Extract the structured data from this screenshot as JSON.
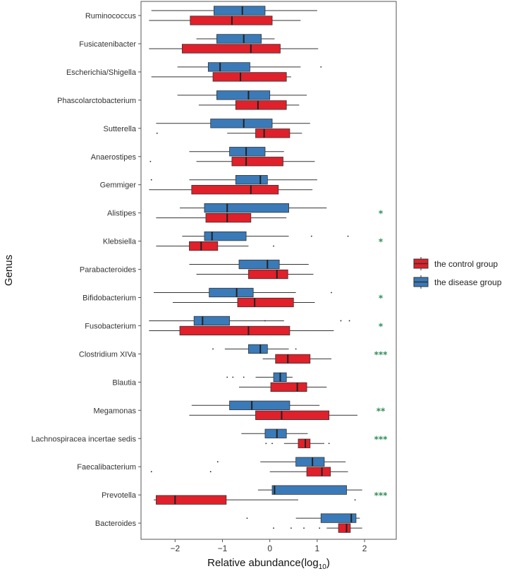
{
  "chart_data": {
    "type": "boxplot",
    "orientation": "horizontal",
    "xlabel": "Relative abundance(log10)",
    "xlabel_main": "Relative abundance(log",
    "xlabel_sub": "10",
    "xlabel_close": ")",
    "ylabel": "Genus",
    "xlim": [
      -2.6,
      2.55
    ],
    "xticks": [
      -2,
      -1,
      0,
      1,
      2
    ],
    "xtick_labels": [
      "−2",
      "−1",
      "0",
      "1",
      "2"
    ],
    "legend_position": "right",
    "series": [
      {
        "name": "the control group",
        "color": "#e0202a"
      },
      {
        "name": "the disease group",
        "color": "#3a7ab8"
      }
    ],
    "significance_color": "#2e8b57",
    "genera": [
      {
        "name": "Ruminococcus",
        "disease": {
          "min": -2.5,
          "q1": -1.18,
          "median": -0.58,
          "q3": -0.1,
          "max": 1.0,
          "outliers": []
        },
        "control": {
          "min": -2.55,
          "q1": -1.68,
          "median": -0.8,
          "q3": 0.05,
          "max": 0.65,
          "outliers": []
        },
        "significance": ""
      },
      {
        "name": "Fusicatenibacter",
        "disease": {
          "min": -1.55,
          "q1": -1.12,
          "median": -0.55,
          "q3": -0.18,
          "max": 0.1,
          "outliers": []
        },
        "control": {
          "min": -2.55,
          "q1": -1.85,
          "median": -0.4,
          "q3": 0.22,
          "max": 1.02,
          "outliers": []
        },
        "significance": ""
      },
      {
        "name": "Escherichia/Shigella",
        "disease": {
          "min": -1.95,
          "q1": -1.3,
          "median": -1.05,
          "q3": -0.42,
          "max": 0.65,
          "outliers": [
            1.08
          ]
        },
        "control": {
          "min": -2.5,
          "q1": -1.2,
          "median": -0.62,
          "q3": 0.35,
          "max": 0.45,
          "outliers": []
        },
        "significance": ""
      },
      {
        "name": "Phascolarctobacterium",
        "disease": {
          "min": -1.95,
          "q1": -1.12,
          "median": -0.45,
          "q3": 0.0,
          "max": 0.78,
          "outliers": []
        },
        "control": {
          "min": -1.5,
          "q1": -0.72,
          "median": -0.25,
          "q3": 0.35,
          "max": 0.62,
          "outliers": []
        },
        "significance": ""
      },
      {
        "name": "Sutterella",
        "disease": {
          "min": -2.4,
          "q1": -1.25,
          "median": -0.55,
          "q3": 0.05,
          "max": 0.85,
          "outliers": []
        },
        "control": {
          "min": -0.9,
          "q1": -0.3,
          "median": -0.12,
          "q3": 0.42,
          "max": 0.68,
          "outliers": [
            -2.38
          ]
        },
        "significance": ""
      },
      {
        "name": "Anaerostipes",
        "disease": {
          "min": -1.7,
          "q1": -0.85,
          "median": -0.5,
          "q3": -0.1,
          "max": 0.3,
          "outliers": []
        },
        "control": {
          "min": -1.55,
          "q1": -0.8,
          "median": -0.5,
          "q3": 0.28,
          "max": 0.95,
          "outliers": [
            -2.52
          ]
        },
        "significance": ""
      },
      {
        "name": "Gemmiger",
        "disease": {
          "min": -1.7,
          "q1": -0.72,
          "median": -0.2,
          "q3": -0.05,
          "max": 1.0,
          "outliers": [
            -2.5
          ]
        },
        "control": {
          "min": -2.55,
          "q1": -1.65,
          "median": -0.4,
          "q3": 0.18,
          "max": 0.9,
          "outliers": []
        },
        "significance": ""
      },
      {
        "name": "Alistipes",
        "disease": {
          "min": -1.9,
          "q1": -1.38,
          "median": -0.9,
          "q3": 0.4,
          "max": 1.2,
          "outliers": []
        },
        "control": {
          "min": -2.4,
          "q1": -1.35,
          "median": -0.9,
          "q3": -0.4,
          "max": 0.35,
          "outliers": []
        },
        "significance": "*"
      },
      {
        "name": "Klebsiella",
        "disease": {
          "min": -1.85,
          "q1": -1.38,
          "median": -1.22,
          "q3": -0.5,
          "max": 0.4,
          "outliers": [
            0.88,
            1.65
          ]
        },
        "control": {
          "min": -2.4,
          "q1": -1.7,
          "median": -1.45,
          "q3": -1.1,
          "max": -0.45,
          "outliers": [
            0.08
          ]
        },
        "significance": "*"
      },
      {
        "name": "Parabacteroides",
        "disease": {
          "min": -1.7,
          "q1": -0.65,
          "median": -0.05,
          "q3": 0.2,
          "max": 0.82,
          "outliers": []
        },
        "control": {
          "min": -1.55,
          "q1": -0.45,
          "median": 0.15,
          "q3": 0.38,
          "max": 0.92,
          "outliers": []
        },
        "significance": ""
      },
      {
        "name": "Bifidobacterium",
        "disease": {
          "min": -2.45,
          "q1": -1.28,
          "median": -0.7,
          "q3": -0.35,
          "max": 0.55,
          "outliers": [
            1.3
          ]
        },
        "control": {
          "min": -2.05,
          "q1": -0.68,
          "median": -0.32,
          "q3": 0.5,
          "max": 0.95,
          "outliers": []
        },
        "significance": "*"
      },
      {
        "name": "Fusobacterium",
        "disease": {
          "min": -2.55,
          "q1": -1.6,
          "median": -1.42,
          "q3": -0.85,
          "max": 0.3,
          "outliers": [
            -0.1,
            1.5,
            1.68
          ]
        },
        "control": {
          "min": -2.55,
          "q1": -1.9,
          "median": -0.45,
          "q3": 0.42,
          "max": 1.35,
          "outliers": []
        },
        "significance": "*"
      },
      {
        "name": "Clostridium XIVa",
        "disease": {
          "min": -0.95,
          "q1": -0.45,
          "median": -0.2,
          "q3": -0.05,
          "max": 0.4,
          "outliers": [
            -1.2,
            0.55
          ]
        },
        "control": {
          "min": -0.15,
          "q1": 0.12,
          "median": 0.38,
          "q3": 0.85,
          "max": 1.3,
          "outliers": []
        },
        "significance": "***"
      },
      {
        "name": "Blautia",
        "disease": {
          "min": -0.3,
          "q1": 0.08,
          "median": 0.22,
          "q3": 0.35,
          "max": 0.48,
          "outliers": [
            -0.9,
            -0.78,
            -0.55
          ]
        },
        "control": {
          "min": -0.65,
          "q1": 0.02,
          "median": 0.58,
          "q3": 0.78,
          "max": 1.2,
          "outliers": []
        },
        "significance": ""
      },
      {
        "name": "Megamonas",
        "disease": {
          "min": -1.65,
          "q1": -0.85,
          "median": -0.38,
          "q3": 0.42,
          "max": 1.05,
          "outliers": []
        },
        "control": {
          "min": -1.7,
          "q1": -0.3,
          "median": 0.25,
          "q3": 1.25,
          "max": 1.85,
          "outliers": []
        },
        "significance": "**"
      },
      {
        "name": "Lachnospiracea incertae sedis",
        "disease": {
          "min": -0.6,
          "q1": -0.1,
          "median": 0.15,
          "q3": 0.35,
          "max": 0.8,
          "outliers": []
        },
        "control": {
          "min": 0.3,
          "q1": 0.6,
          "median": 0.75,
          "q3": 0.85,
          "max": 1.15,
          "outliers": [
            -0.08,
            0.05,
            1.25
          ]
        },
        "significance": "***"
      },
      {
        "name": "Faecalibacterium",
        "disease": {
          "min": -0.2,
          "q1": 0.55,
          "median": 0.9,
          "q3": 1.15,
          "max": 1.6,
          "outliers": [
            -1.1
          ]
        },
        "control": {
          "min": 0.0,
          "q1": 0.78,
          "median": 1.1,
          "q3": 1.28,
          "max": 1.65,
          "outliers": [
            -2.5,
            -1.25
          ]
        },
        "significance": ""
      },
      {
        "name": "Prevotella",
        "disease": {
          "min": -0.25,
          "q1": 0.05,
          "median": 0.1,
          "q3": 1.62,
          "max": 1.95,
          "outliers": []
        },
        "control": {
          "min": -2.45,
          "q1": -2.4,
          "median": -2.0,
          "q3": -0.92,
          "max": 0.6,
          "outliers": [
            1.8
          ]
        },
        "significance": "***"
      },
      {
        "name": "Bacteroides",
        "disease": {
          "min": 0.55,
          "q1": 1.08,
          "median": 1.72,
          "q3": 1.82,
          "max": 1.9,
          "outliers": [
            -0.48
          ]
        },
        "control": {
          "min": 1.2,
          "q1": 1.45,
          "median": 1.62,
          "q3": 1.7,
          "max": 1.95,
          "outliers": [
            0.08,
            0.45,
            0.72,
            1.05
          ]
        },
        "significance": ""
      }
    ]
  }
}
